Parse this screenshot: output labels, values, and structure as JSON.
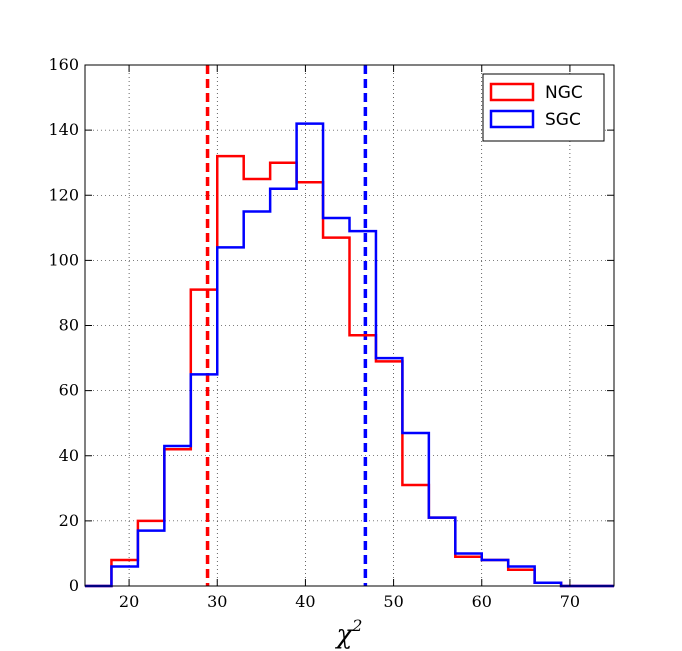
{
  "chart_data": {
    "type": "histogram",
    "xlabel": "χ",
    "xlabel_superscript": "2",
    "xlim": [
      15,
      75
    ],
    "ylim": [
      0,
      160
    ],
    "xticks": [
      20,
      30,
      40,
      50,
      60,
      70
    ],
    "yticks": [
      0,
      20,
      40,
      60,
      80,
      100,
      120,
      140,
      160
    ],
    "grid": true,
    "legend_placement": "top-right",
    "bin_edges": [
      15,
      18,
      21,
      24,
      27,
      30,
      33,
      36,
      39,
      42,
      45,
      48,
      51,
      54,
      57,
      60,
      63,
      66,
      69,
      72,
      75
    ],
    "series": [
      {
        "name": "NGC",
        "color": "#ff0000",
        "values": [
          0,
          8,
          20,
          42,
          91,
          132,
          125,
          130,
          124,
          107,
          77,
          69,
          31,
          21,
          9,
          8,
          5,
          1,
          0,
          0
        ]
      },
      {
        "name": "SGC",
        "color": "#0000ff",
        "values": [
          0,
          6,
          17,
          43,
          65,
          104,
          115,
          122,
          142,
          113,
          109,
          70,
          47,
          21,
          10,
          8,
          6,
          1,
          0,
          0
        ]
      }
    ],
    "vlines": [
      {
        "series": "NGC",
        "x": 28.9,
        "color": "#ff0000",
        "style": "dashed"
      },
      {
        "series": "SGC",
        "x": 46.8,
        "color": "#0000ff",
        "style": "dashed"
      }
    ]
  }
}
